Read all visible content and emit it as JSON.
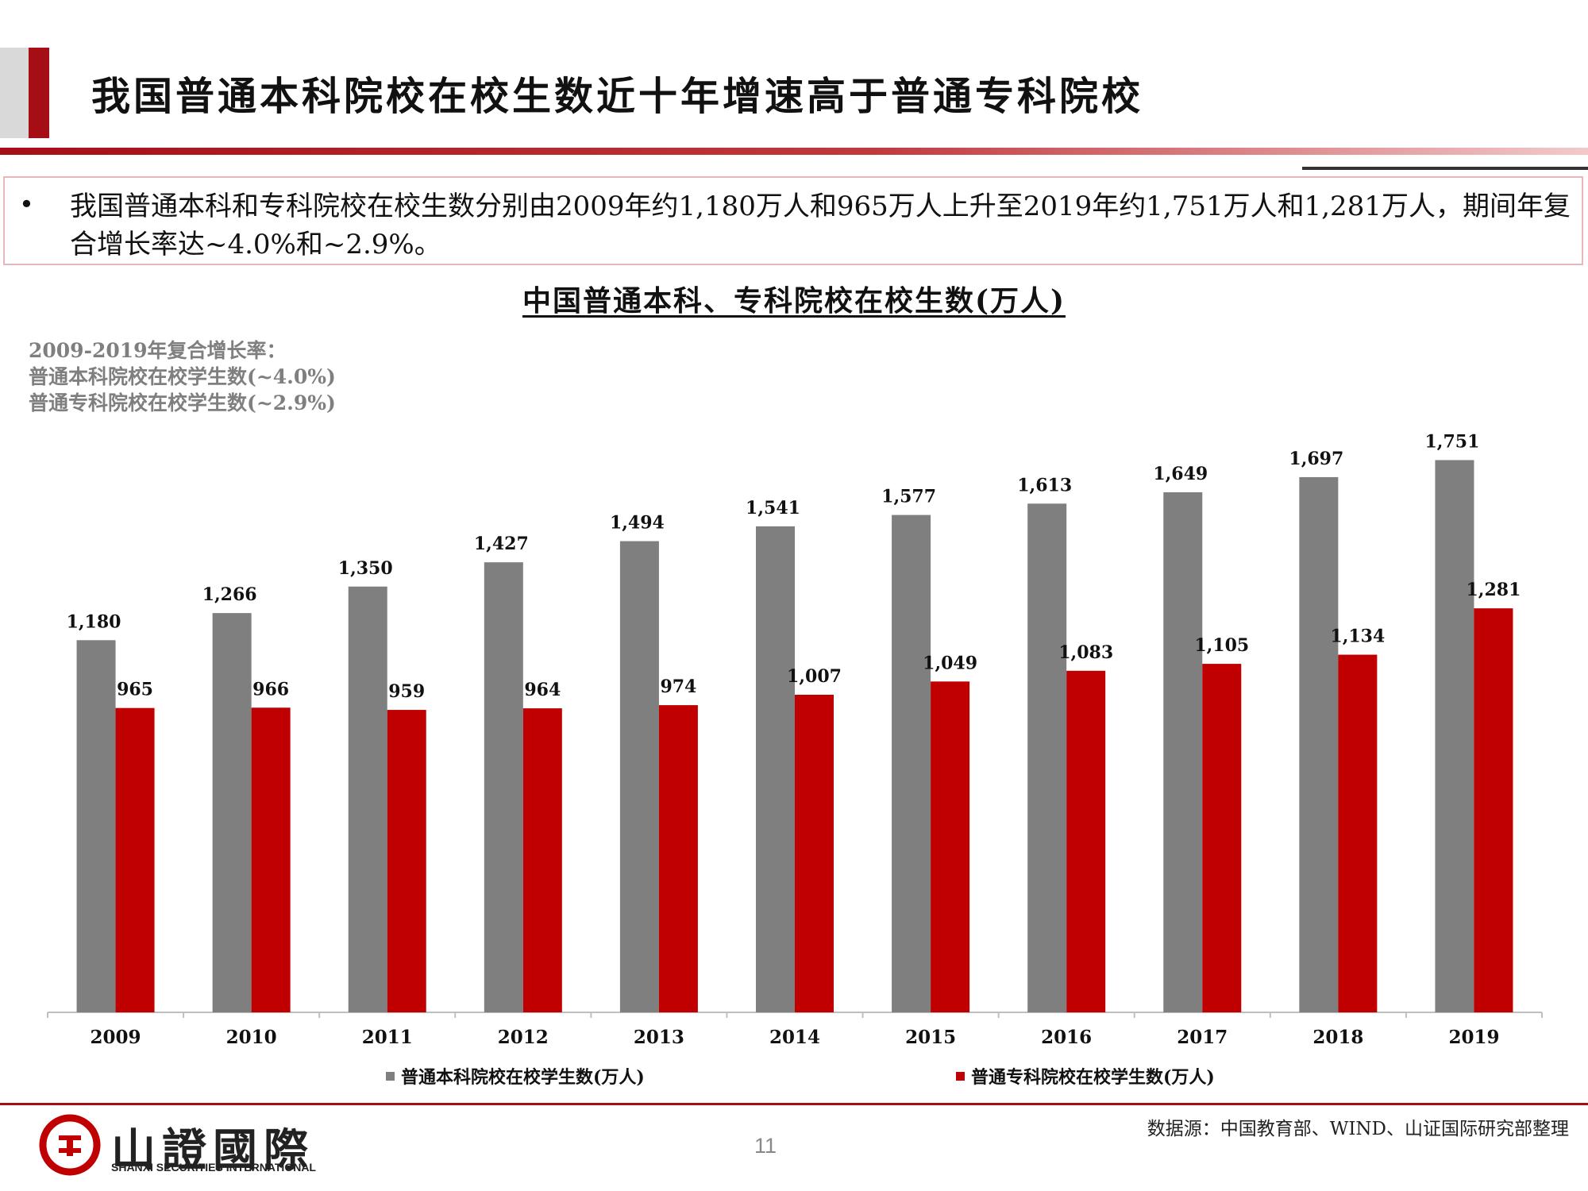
{
  "header": {
    "title": "我国普通本科院校在校生数近十年增速高于普通专科院校"
  },
  "summary": {
    "bullet": "•",
    "text": "我国普通本科和专科院校在校生数分别由2009年约1,180万人和965万人上升至2019年约1,751万人和1,281万人，期间年复合增长率达~4.0%和~2.9%。"
  },
  "cagr_note": {
    "line1": "2009-2019年复合增长率：",
    "line2": "普通本科院校在校学生数(~4.0%)",
    "line3": "普通专科院校在校学生数(~2.9%)"
  },
  "colors": {
    "accent_red": "#a50e14",
    "series_gray": "#7f7f7f",
    "series_red": "#c00000"
  },
  "chart_data": {
    "type": "bar",
    "title": "中国普通本科、专科院校在校生数(万人)",
    "xlabel": "",
    "ylabel": "",
    "categories": [
      "2009",
      "2010",
      "2011",
      "2012",
      "2013",
      "2014",
      "2015",
      "2016",
      "2017",
      "2018",
      "2019"
    ],
    "series": [
      {
        "name": "普通本科院校在校学生数(万人)",
        "color": "#7f7f7f",
        "values": [
          1180,
          1266,
          1350,
          1427,
          1494,
          1541,
          1577,
          1613,
          1649,
          1697,
          1751
        ],
        "labels": [
          "1,180",
          "1,266",
          "1,350",
          "1,427",
          "1,494",
          "1,541",
          "1,577",
          "1,613",
          "1,649",
          "1,697",
          "1,751"
        ]
      },
      {
        "name": "普通专科院校在校学生数(万人)",
        "color": "#c00000",
        "values": [
          965,
          966,
          959,
          964,
          974,
          1007,
          1049,
          1083,
          1105,
          1134,
          1281
        ],
        "labels": [
          "965",
          "966",
          "959",
          "964",
          "974",
          "1,007",
          "1,049",
          "1,083",
          "1,105",
          "1,134",
          "1,281"
        ]
      }
    ],
    "ylim": [
      0,
      1800
    ],
    "grid": false,
    "legend_position": "bottom"
  },
  "footer": {
    "logo_cn": "山證國際",
    "logo_en": "SHANXI SECURITIES INTERNATIONAL",
    "page_number": "11",
    "source": "数据源：中国教育部、WIND、山证国际研究部整理"
  }
}
